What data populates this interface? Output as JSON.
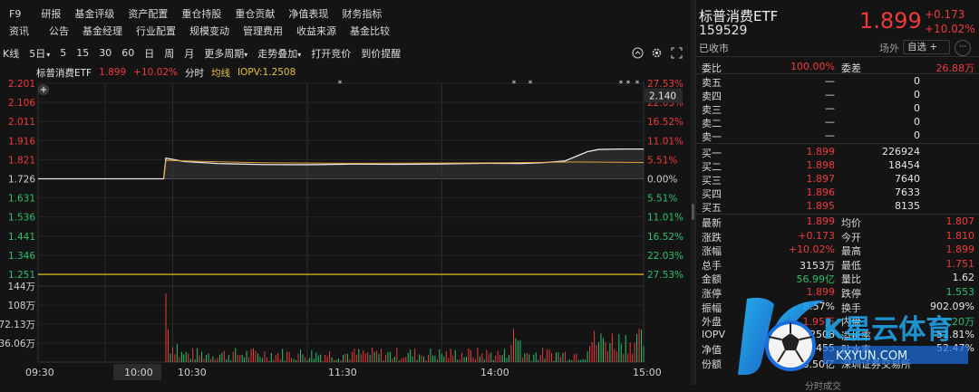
{
  "top_nav": {
    "row1": [
      "F9",
      "研报",
      "基金评级",
      "资产配置",
      "重仓持股",
      "重仓贡献",
      "净值表现",
      "财务指标"
    ],
    "row2": [
      "资讯",
      "公告",
      "基金经理",
      "行业配置",
      "规模变动",
      "管理费用",
      "收益来源",
      "基金比较"
    ]
  },
  "kbar": {
    "items": [
      "K线",
      "5日",
      "5",
      "15",
      "30",
      "60",
      "日",
      "周",
      "月",
      "更多周期",
      "走势叠加",
      "打开竞价",
      "到价提醒"
    ]
  },
  "legend": {
    "name": "标普消费ETF",
    "price": "1.899",
    "pct": "+10.02%",
    "mode": "分时",
    "avg": "均线",
    "iopv": "IOPV:1.2508"
  },
  "chart_data": {
    "type": "line",
    "prev_close": 1.726,
    "y_ticks_left": [
      "2.201",
      "2.106",
      "2.011",
      "1.916",
      "1.821",
      "1.726",
      "1.631",
      "1.536",
      "1.441",
      "1.346",
      "1.251"
    ],
    "y_ticks_right": [
      "27.53%",
      "22.03%",
      "16.52%",
      "11.01%",
      "5.51%",
      "0.00%",
      "5.51%",
      "11.01%",
      "16.52%",
      "22.03%",
      "27.53%"
    ],
    "ylim": [
      1.251,
      2.201
    ],
    "crosshair_price": "2.140",
    "x_labels": [
      "09:30",
      "10:00",
      "10:30",
      "11:30",
      "14:00",
      "15:00"
    ],
    "series": [
      {
        "name": "标普消费ETF",
        "color": "#e8e8e8",
        "points": [
          [
            0,
            1.726
          ],
          [
            56,
            1.726
          ],
          [
            57,
            1.829
          ],
          [
            65,
            1.812
          ],
          [
            80,
            1.802
          ],
          [
            100,
            1.797
          ],
          [
            120,
            1.796
          ],
          [
            140,
            1.799
          ],
          [
            160,
            1.798
          ],
          [
            180,
            1.8
          ],
          [
            200,
            1.803
          ],
          [
            215,
            1.802
          ],
          [
            225,
            1.806
          ],
          [
            235,
            1.815
          ],
          [
            240,
            1.838
          ],
          [
            245,
            1.861
          ],
          [
            250,
            1.872
          ],
          [
            260,
            1.874
          ],
          [
            270,
            1.874
          ]
        ]
      },
      {
        "name": "均线",
        "color": "#e6a23c",
        "points": [
          [
            56,
            1.726
          ],
          [
            57,
            1.818
          ],
          [
            70,
            1.813
          ],
          [
            100,
            1.806
          ],
          [
            140,
            1.803
          ],
          [
            180,
            1.804
          ],
          [
            210,
            1.806
          ],
          [
            240,
            1.81
          ],
          [
            270,
            1.807
          ]
        ]
      },
      {
        "name": "IOPV",
        "color": "#d4b020",
        "points": [
          [
            0,
            1.2508
          ],
          [
            270,
            1.2508
          ]
        ]
      }
    ],
    "volume": {
      "y_ticks": [
        "144万",
        "108万",
        "72.13万",
        "36.06万"
      ],
      "ylim": [
        0,
        1440000
      ]
    }
  },
  "quote": {
    "title": "标普消费ETF",
    "code": "159529",
    "market_status": "已收市",
    "price": "1.899",
    "change": "+0.173",
    "change_pct": "+10.02%",
    "exchange_tag": "场外",
    "watchlist_label": "自选",
    "more_label": "···",
    "weibi_label": "委比",
    "weibi": "100.00%",
    "weicha_label": "委差",
    "weicha": "26.88万",
    "asks": [
      {
        "label": "卖五",
        "price": "—",
        "vol": "0"
      },
      {
        "label": "卖四",
        "price": "—",
        "vol": "0"
      },
      {
        "label": "卖三",
        "price": "—",
        "vol": "0"
      },
      {
        "label": "卖二",
        "price": "—",
        "vol": "0"
      },
      {
        "label": "卖一",
        "price": "—",
        "vol": "0"
      }
    ],
    "bids": [
      {
        "label": "买一",
        "price": "1.899",
        "vol": "226924"
      },
      {
        "label": "买二",
        "price": "1.898",
        "vol": "18454"
      },
      {
        "label": "买三",
        "price": "1.897",
        "vol": "7640"
      },
      {
        "label": "买四",
        "price": "1.896",
        "vol": "7633"
      },
      {
        "label": "买五",
        "price": "1.895",
        "vol": "8135"
      }
    ],
    "stats": [
      {
        "l": "最新",
        "v": "1.899",
        "vc": "red",
        "l2": "均价",
        "v2": "1.807",
        "v2c": "red"
      },
      {
        "l": "涨跌",
        "v": "+0.173",
        "vc": "red",
        "l2": "今开",
        "v2": "1.810",
        "v2c": "red"
      },
      {
        "l": "涨幅",
        "v": "+10.02%",
        "vc": "red",
        "l2": "最高",
        "v2": "1.899",
        "v2c": "red"
      },
      {
        "l": "总手",
        "v": "3153万",
        "vc": "white",
        "l2": "最低",
        "v2": "1.751",
        "v2c": "red"
      },
      {
        "l": "金额",
        "v": "56.99亿",
        "vc": "green",
        "l2": "量比",
        "v2": "1.62",
        "v2c": "white"
      },
      {
        "l": "涨停",
        "v": "1.899",
        "vc": "red",
        "l2": "跌停",
        "v2": "1.553",
        "v2c": "green"
      },
      {
        "l": "振幅",
        "v": "8.57%",
        "vc": "white",
        "l2": "换手",
        "v2": "902.09%",
        "v2c": "white"
      },
      {
        "l": "外盘",
        "v": "1.95万",
        "vc": "red",
        "l2": "内盘",
        "v2": "1.20万",
        "v2c": "green"
      },
      {
        "l": "IOPV",
        "v": "1.2508",
        "vc": "white",
        "l2": "溢折率",
        "v2": "51.81%",
        "v2c": "white"
      },
      {
        "l": "净值",
        "v": "1.2455",
        "vc": "white",
        "l2": "贴水率",
        "v2": "52.47%",
        "v2c": "white"
      },
      {
        "l": "份额",
        "v": "3.50亿",
        "vc": "white",
        "l2": "深圳证券交易所",
        "v2": "",
        "v2c": "white"
      }
    ],
    "bottom_tab": "分时成交"
  },
  "colors": {
    "up": "#f0393b",
    "down": "#27c26c",
    "bg": "#141414",
    "grid": "#2a2a2a"
  }
}
